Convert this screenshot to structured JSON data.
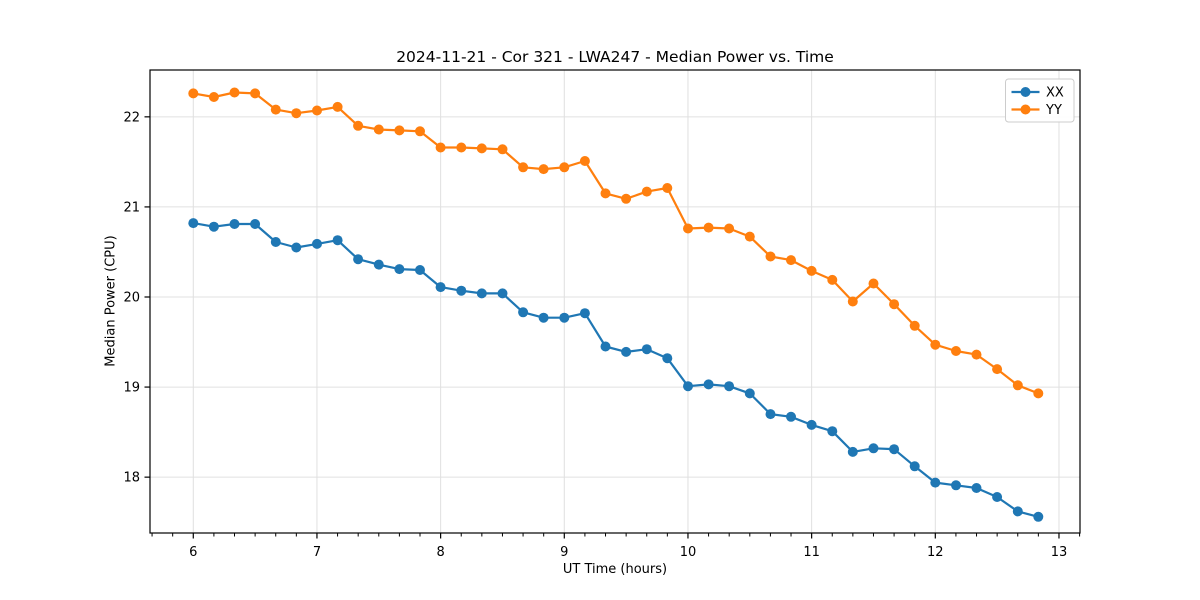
{
  "chart_data": {
    "type": "line",
    "title": "2024-11-21 - Cor 321 - LWA247 - Median Power vs. Time",
    "xlabel": "UT Time (hours)",
    "ylabel": "Median Power (CPU)",
    "x": [
      6.0,
      6.167,
      6.333,
      6.5,
      6.667,
      6.833,
      7.0,
      7.167,
      7.333,
      7.5,
      7.667,
      7.833,
      8.0,
      8.167,
      8.333,
      8.5,
      8.667,
      8.833,
      9.0,
      9.167,
      9.333,
      9.5,
      9.667,
      9.833,
      10.0,
      10.167,
      10.333,
      10.5,
      10.667,
      10.833,
      11.0,
      11.167,
      11.333,
      11.5,
      11.667,
      11.833,
      12.0,
      12.167,
      12.333,
      12.5,
      12.667,
      12.833
    ],
    "series": [
      {
        "name": "XX",
        "color": "#1f77b4",
        "values": [
          20.82,
          20.78,
          20.81,
          20.81,
          20.61,
          20.55,
          20.59,
          20.63,
          20.42,
          20.36,
          20.31,
          20.3,
          20.11,
          20.07,
          20.04,
          20.04,
          19.83,
          19.77,
          19.77,
          19.82,
          19.45,
          19.39,
          19.42,
          19.32,
          19.01,
          19.03,
          19.01,
          18.93,
          18.7,
          18.67,
          18.58,
          18.51,
          18.28,
          18.32,
          18.31,
          18.12,
          17.94,
          17.91,
          17.88,
          17.78,
          17.62,
          17.56
        ]
      },
      {
        "name": "YY",
        "color": "#ff7f0e",
        "values": [
          22.26,
          22.22,
          22.27,
          22.26,
          22.08,
          22.04,
          22.07,
          22.11,
          21.9,
          21.86,
          21.85,
          21.84,
          21.66,
          21.66,
          21.65,
          21.64,
          21.44,
          21.42,
          21.44,
          21.51,
          21.15,
          21.09,
          21.17,
          21.21,
          20.76,
          20.77,
          20.76,
          20.67,
          20.45,
          20.41,
          20.29,
          20.19,
          19.95,
          20.15,
          19.92,
          19.68,
          19.47,
          19.4,
          19.36,
          19.2,
          19.02,
          18.93
        ]
      }
    ],
    "xlim": [
      5.65,
      13.17
    ],
    "ylim": [
      17.38,
      22.52
    ],
    "xticks": [
      6,
      7,
      8,
      9,
      10,
      11,
      12,
      13
    ],
    "yticks": [
      18,
      19,
      20,
      21,
      22
    ],
    "x_minor_tick_step": 0.1667,
    "grid": true,
    "grid_color": "#e0e0e0",
    "spine_color": "#000000",
    "background": "#ffffff",
    "marker": "circle",
    "legend": {
      "position": "upper-right",
      "entries": [
        "XX",
        "YY"
      ]
    }
  }
}
